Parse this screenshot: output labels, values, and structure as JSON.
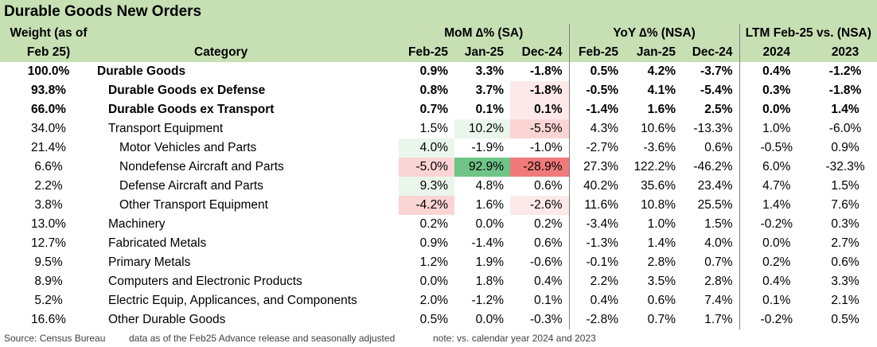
{
  "title": "Durable Goods New Orders",
  "chart_data": {
    "type": "table",
    "header": {
      "weight_line1": "Weight (as of",
      "weight_line2": "Feb 25)",
      "category": "Category",
      "groups": {
        "mom": "MoM ∆% (SA)",
        "yoy": "YoY ∆% (NSA)",
        "ltm": "LTM Feb-25 vs. (NSA)"
      },
      "columns": [
        "Feb-25",
        "Jan-25",
        "Dec-24",
        "Feb-25",
        "Jan-25",
        "Dec-24",
        "2024",
        "2023"
      ]
    },
    "rows": [
      {
        "weight": "100.0%",
        "category": "Durable Goods",
        "level": 0,
        "bold": true,
        "values": [
          "0.9%",
          "3.3%",
          "-1.8%",
          "0.5%",
          "4.2%",
          "-3.7%",
          "0.4%",
          "-1.2%"
        ]
      },
      {
        "weight": "93.8%",
        "category": "Durable Goods ex Defense",
        "level": 1,
        "bold": true,
        "values": [
          "0.8%",
          "3.7%",
          "-1.8%",
          "-0.5%",
          "4.1%",
          "-5.4%",
          "0.3%",
          "-1.8%"
        ]
      },
      {
        "weight": "66.0%",
        "category": "Durable Goods ex Transport",
        "level": 1,
        "bold": true,
        "values": [
          "0.7%",
          "0.1%",
          "0.1%",
          "-1.4%",
          "1.6%",
          "2.5%",
          "0.0%",
          "1.4%"
        ]
      },
      {
        "weight": "34.0%",
        "category": "Transport Equipment",
        "level": 1,
        "bold": false,
        "values": [
          "1.5%",
          "10.2%",
          "-5.5%",
          "4.3%",
          "10.6%",
          "-13.3%",
          "1.0%",
          "-6.0%"
        ]
      },
      {
        "weight": "21.4%",
        "category": "Motor Vehicles and Parts",
        "level": 2,
        "bold": false,
        "values": [
          "4.0%",
          "-1.9%",
          "-1.0%",
          "-2.7%",
          "-3.6%",
          "0.6%",
          "-0.5%",
          "0.9%"
        ]
      },
      {
        "weight": "6.6%",
        "category": "Nondefense Aircraft and Parts",
        "level": 2,
        "bold": false,
        "values": [
          "-5.0%",
          "92.9%",
          "-28.9%",
          "27.3%",
          "122.2%",
          "-46.2%",
          "6.0%",
          "-32.3%"
        ]
      },
      {
        "weight": "2.2%",
        "category": "Defense Aircraft and Parts",
        "level": 2,
        "bold": false,
        "values": [
          "9.3%",
          "4.8%",
          "0.6%",
          "40.2%",
          "35.6%",
          "23.4%",
          "4.7%",
          "1.5%"
        ]
      },
      {
        "weight": "3.8%",
        "category": "Other Transport Equipment",
        "level": 2,
        "bold": false,
        "values": [
          "-4.2%",
          "1.6%",
          "-2.6%",
          "11.6%",
          "10.8%",
          "25.5%",
          "1.4%",
          "7.6%"
        ]
      },
      {
        "weight": "13.0%",
        "category": "Machinery",
        "level": 1,
        "bold": false,
        "values": [
          "0.2%",
          "0.0%",
          "0.2%",
          "-3.4%",
          "1.0%",
          "1.5%",
          "-0.2%",
          "0.3%"
        ]
      },
      {
        "weight": "12.7%",
        "category": "Fabricated Metals",
        "level": 1,
        "bold": false,
        "values": [
          "0.9%",
          "-1.4%",
          "0.6%",
          "-1.3%",
          "1.4%",
          "4.0%",
          "0.0%",
          "2.7%"
        ]
      },
      {
        "weight": "9.5%",
        "category": "Primary Metals",
        "level": 1,
        "bold": false,
        "values": [
          "1.2%",
          "1.9%",
          "-0.6%",
          "-0.1%",
          "2.8%",
          "0.7%",
          "0.2%",
          "0.6%"
        ]
      },
      {
        "weight": "8.9%",
        "category": "Computers and Electronic Products",
        "level": 1,
        "bold": false,
        "values": [
          "0.0%",
          "1.8%",
          "0.4%",
          "2.2%",
          "3.5%",
          "2.8%",
          "0.4%",
          "3.3%"
        ]
      },
      {
        "weight": "5.2%",
        "category": "Electric Equip, Applicances, and Components",
        "level": 1,
        "bold": false,
        "values": [
          "2.0%",
          "-1.2%",
          "0.1%",
          "0.4%",
          "0.6%",
          "7.4%",
          "0.1%",
          "2.1%"
        ]
      },
      {
        "weight": "16.6%",
        "category": "Other Durable Goods",
        "level": 1,
        "bold": false,
        "values": [
          "0.5%",
          "0.0%",
          "-0.3%",
          "-2.8%",
          "0.7%",
          "1.7%",
          "-0.2%",
          "0.5%"
        ]
      }
    ],
    "highlight_colors": {
      "neg_light": "#fde9e9",
      "neg_mid": "#fbd4d4",
      "neg_strong": "#f07a7a",
      "pos_light": "#eaf6ec",
      "pos_mid": "#d7eedb",
      "pos_strong": "#6fc487",
      "header_bg": "#c6e0b4"
    }
  },
  "footer": {
    "source": "Source: Census Bureau",
    "note1": "data as of the Feb25 Advance release and seasonally adjusted",
    "note2": "note: vs. calendar year 2024 and 2023"
  }
}
